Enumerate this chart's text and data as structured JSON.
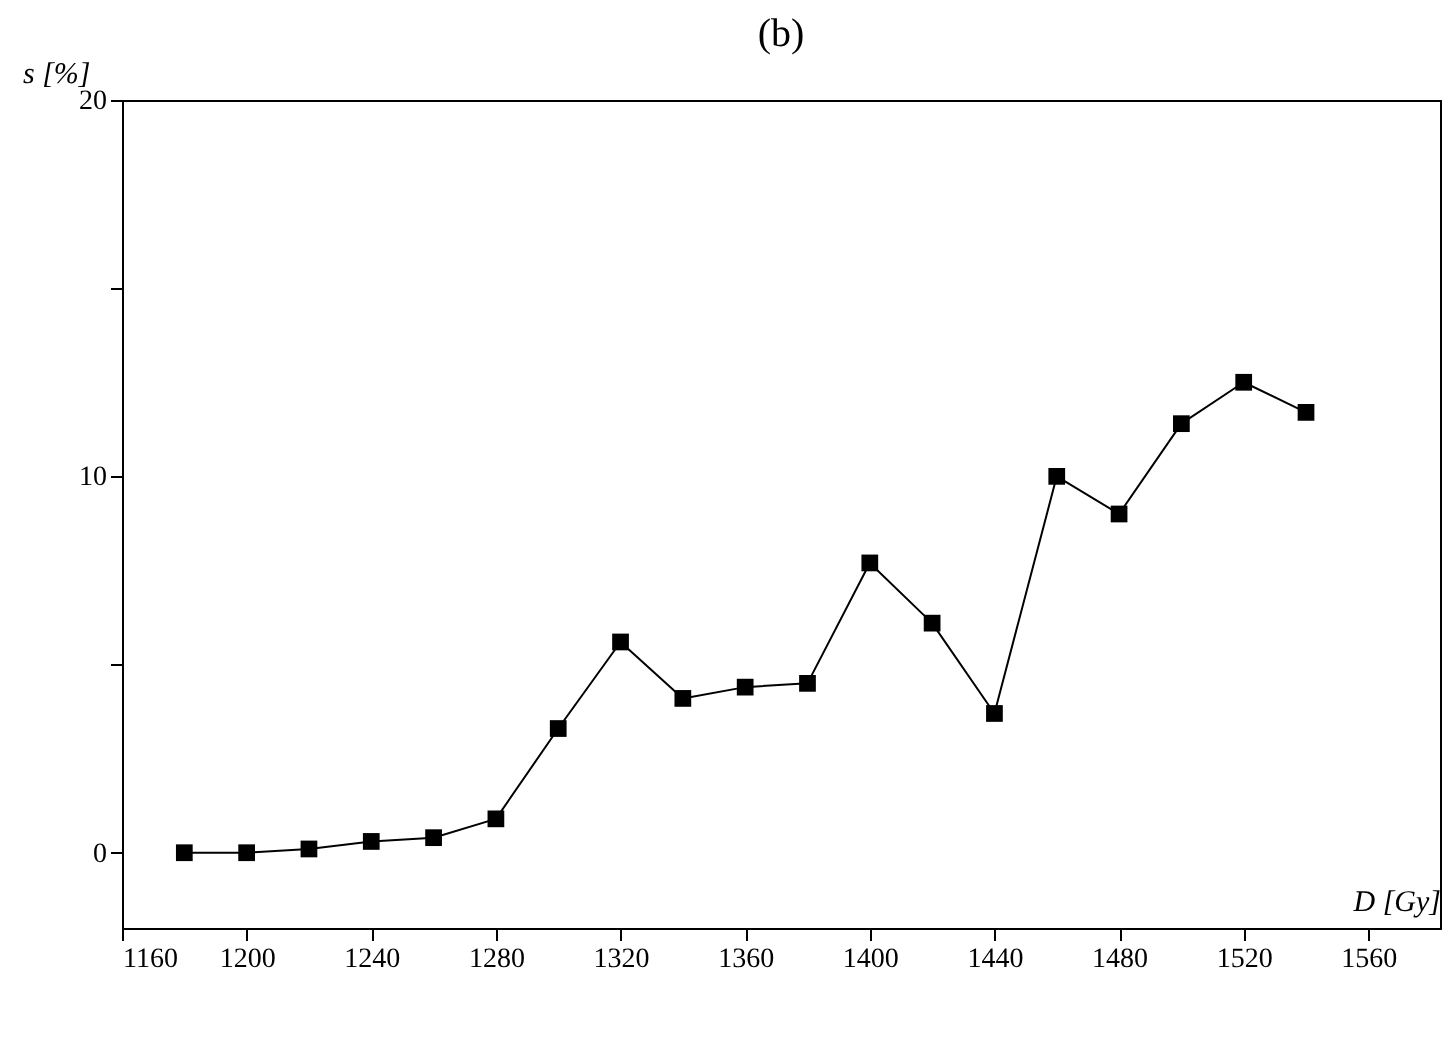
{
  "chart_data": {
    "type": "line",
    "title": "(b)",
    "xlabel": "D [Gy]",
    "ylabel": "s [%]",
    "x": [
      1180,
      1200,
      1220,
      1240,
      1260,
      1280,
      1300,
      1320,
      1340,
      1360,
      1380,
      1400,
      1420,
      1440,
      1460,
      1480,
      1500,
      1520,
      1540
    ],
    "series": [
      {
        "color": "#000000",
        "values": [
          0,
          0,
          0.1,
          0.3,
          0.4,
          0.9,
          3.3,
          5.6,
          4.1,
          4.4,
          4.5,
          7.7,
          6.1,
          3.7,
          10.0,
          9.0,
          11.4,
          12.5,
          11.7
        ]
      }
    ],
    "xlim": [
      1160,
      1583
    ],
    "xticks": [
      1160,
      1200,
      1240,
      1280,
      1320,
      1360,
      1400,
      1440,
      1480,
      1520,
      1560
    ],
    "ylim": [
      -2,
      20
    ],
    "yticks": [
      0,
      {
        "value": 5,
        "label": null
      },
      10,
      {
        "value": 15,
        "label": null
      },
      20
    ],
    "marker": "square",
    "line_style": "solid",
    "grid": false,
    "legend": false
  }
}
